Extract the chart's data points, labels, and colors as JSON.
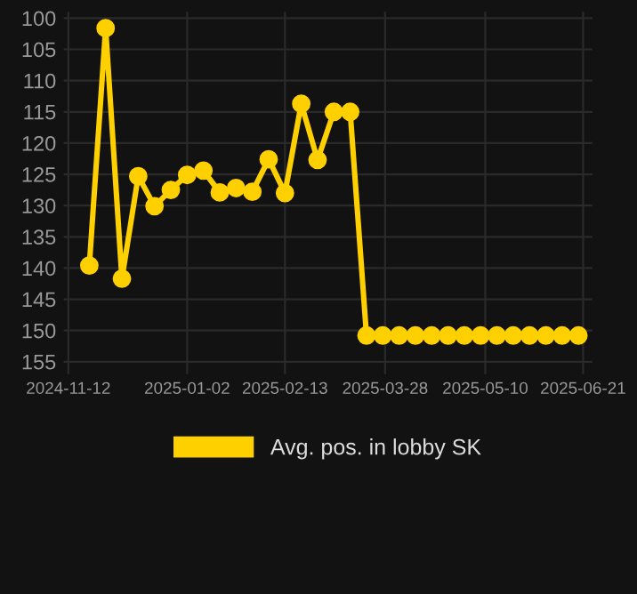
{
  "chart_data": {
    "type": "line",
    "x": [
      "2024-11-21",
      "2024-11-28",
      "2024-12-05",
      "2024-12-12",
      "2024-12-19",
      "2024-12-26",
      "2025-01-02",
      "2025-01-09",
      "2025-01-16",
      "2025-01-23",
      "2025-01-30",
      "2025-02-06",
      "2025-02-13",
      "2025-02-20",
      "2025-02-27",
      "2025-03-06",
      "2025-03-13",
      "2025-03-20",
      "2025-03-27",
      "2025-04-03",
      "2025-04-10",
      "2025-04-17",
      "2025-04-24",
      "2025-05-01",
      "2025-05-08",
      "2025-05-15",
      "2025-05-22",
      "2025-05-29",
      "2025-06-05",
      "2025-06-12",
      "2025-06-19"
    ],
    "series": [
      {
        "name": "Avg. pos. in lobby SK",
        "color": "#ffd000",
        "values": [
          139.6,
          101.6,
          141.7,
          125.3,
          130.1,
          127.5,
          125.1,
          124.4,
          127.9,
          127.2,
          127.8,
          122.6,
          128.0,
          113.7,
          122.7,
          115.0,
          115.0,
          150.8,
          150.8,
          150.8,
          150.8,
          150.8,
          150.8,
          150.8,
          150.8,
          150.8,
          150.8,
          150.8,
          150.8,
          150.8,
          150.8
        ]
      }
    ],
    "xlim": [
      "2024-11-10",
      "2025-06-25"
    ],
    "xticks": [
      "2024-11-12",
      "2025-01-02",
      "2025-02-13",
      "2025-03-28",
      "2025-05-10",
      "2025-06-21"
    ],
    "ylim": [
      157,
      99
    ],
    "yticks": [
      100,
      105,
      110,
      115,
      120,
      125,
      130,
      135,
      140,
      145,
      150,
      155
    ],
    "grid": true,
    "legend": "bottom",
    "marker": "circle",
    "line_style": "solid"
  }
}
